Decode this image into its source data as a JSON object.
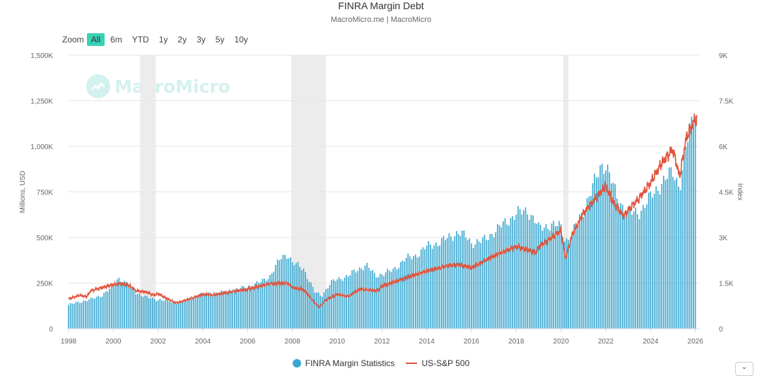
{
  "header": {
    "title": "FINRA Margin Debt",
    "subtitle": "MacroMicro.me | MacroMicro"
  },
  "zoom": {
    "label": "Zoom",
    "buttons": [
      "All",
      "6m",
      "YTD",
      "1y",
      "2y",
      "3y",
      "5y",
      "10y"
    ],
    "active": "All"
  },
  "watermark": {
    "text": "MacroMicro"
  },
  "menu_button": {
    "icon": "chevron-down-icon",
    "label": "⌄"
  },
  "chart_data": {
    "type": "bar",
    "title": "FINRA Margin Debt",
    "xlim": [
      1998,
      2026.2
    ],
    "x_ticks": [
      "1998",
      "2000",
      "2002",
      "2004",
      "2006",
      "2008",
      "2010",
      "2012",
      "2014",
      "2016",
      "2018",
      "2020",
      "2022",
      "2024",
      "2026"
    ],
    "y_left": {
      "label": "Millions, USD",
      "range": [
        0,
        1500000
      ],
      "ticks": [
        0,
        250000,
        500000,
        750000,
        1000000,
        1250000,
        1500000
      ],
      "tick_labels": [
        "0",
        "250K",
        "500K",
        "750K",
        "1,000K",
        "1,250K",
        "1,500K"
      ]
    },
    "y_right": {
      "label": "Index",
      "range": [
        0,
        9000
      ],
      "ticks": [
        0,
        1500,
        3000,
        4500,
        6000,
        7500,
        9000
      ],
      "tick_labels": [
        "0",
        "1.5K",
        "3K",
        "4.5K",
        "6K",
        "7.5K",
        "9K"
      ]
    },
    "grid": true,
    "recession_bands": [
      [
        2001.2,
        2001.9
      ],
      [
        2007.95,
        2009.5
      ],
      [
        2020.1,
        2020.33
      ]
    ],
    "series": [
      {
        "name": "FINRA Margin Statistics",
        "type": "bar",
        "axis": "left",
        "color": "#3ba8d0",
        "anchors_x": [
          1998,
          1998.6,
          1999,
          1999.5,
          2000,
          2000.2,
          2000.5,
          2001,
          2001.5,
          2002,
          2002.5,
          2003,
          2003.5,
          2004,
          2004.5,
          2005,
          2005.5,
          2006,
          2006.5,
          2007,
          2007.5,
          2007.8,
          2008,
          2008.5,
          2009,
          2009.3,
          2009.7,
          2010,
          2010.5,
          2011,
          2011.3,
          2011.7,
          2012,
          2012.5,
          2013,
          2013.5,
          2014,
          2014.5,
          2015,
          2015.4,
          2015.8,
          2016,
          2016.5,
          2017,
          2017.5,
          2018,
          2018.5,
          2018.9,
          2019,
          2019.5,
          2020,
          2020.2,
          2020.5,
          2021,
          2021.5,
          2021.8,
          2022,
          2022.5,
          2023,
          2023.5,
          2024,
          2024.5,
          2025,
          2025.3,
          2025.6,
          2026
        ],
        "anchors_y": [
          130000,
          150000,
          160000,
          185000,
          230000,
          280000,
          255000,
          200000,
          170000,
          160000,
          150000,
          140000,
          170000,
          190000,
          195000,
          200000,
          215000,
          230000,
          250000,
          290000,
          390000,
          410000,
          360000,
          330000,
          200000,
          180000,
          250000,
          270000,
          290000,
          330000,
          350000,
          290000,
          300000,
          320000,
          380000,
          400000,
          450000,
          470000,
          500000,
          530000,
          500000,
          470000,
          480000,
          530000,
          580000,
          630000,
          650000,
          580000,
          550000,
          570000,
          560000,
          480000,
          520000,
          650000,
          800000,
          900000,
          900000,
          720000,
          630000,
          640000,
          720000,
          800000,
          860000,
          780000,
          1000000,
          1220000
        ]
      },
      {
        "name": "US-S&P 500",
        "type": "line",
        "axis": "right",
        "color": "#e2553e",
        "anchors_x": [
          1998,
          1998.5,
          1998.8,
          1999,
          1999.5,
          2000,
          2000.3,
          2000.7,
          2001,
          2001.5,
          2001.8,
          2002,
          2002.5,
          2002.8,
          2003,
          2003.5,
          2004,
          2004.5,
          2005,
          2006,
          2007,
          2007.8,
          2008,
          2008.5,
          2009,
          2009.2,
          2009.5,
          2010,
          2010.5,
          2011,
          2011.8,
          2012,
          2013,
          2014,
          2015,
          2015.5,
          2016,
          2017,
          2018,
          2018.9,
          2019,
          2019.5,
          2020,
          2020.2,
          2020.5,
          2021,
          2022,
          2022.3,
          2022.8,
          2023,
          2023.5,
          2024,
          2024.5,
          2025,
          2025.3,
          2025.6,
          2026,
          2026.1
        ],
        "anchors_y": [
          980,
          1100,
          1050,
          1250,
          1350,
          1450,
          1480,
          1430,
          1250,
          1200,
          1100,
          1150,
          950,
          850,
          880,
          1000,
          1130,
          1110,
          1180,
          1300,
          1480,
          1500,
          1350,
          1280,
          850,
          700,
          950,
          1130,
          1060,
          1300,
          1250,
          1400,
          1650,
          1900,
          2080,
          2100,
          2000,
          2400,
          2700,
          2500,
          2700,
          2950,
          3230,
          2300,
          3100,
          3800,
          4700,
          4200,
          3700,
          3900,
          4300,
          4800,
          5450,
          5900,
          5000,
          6300,
          6900,
          6800
        ]
      }
    ]
  }
}
